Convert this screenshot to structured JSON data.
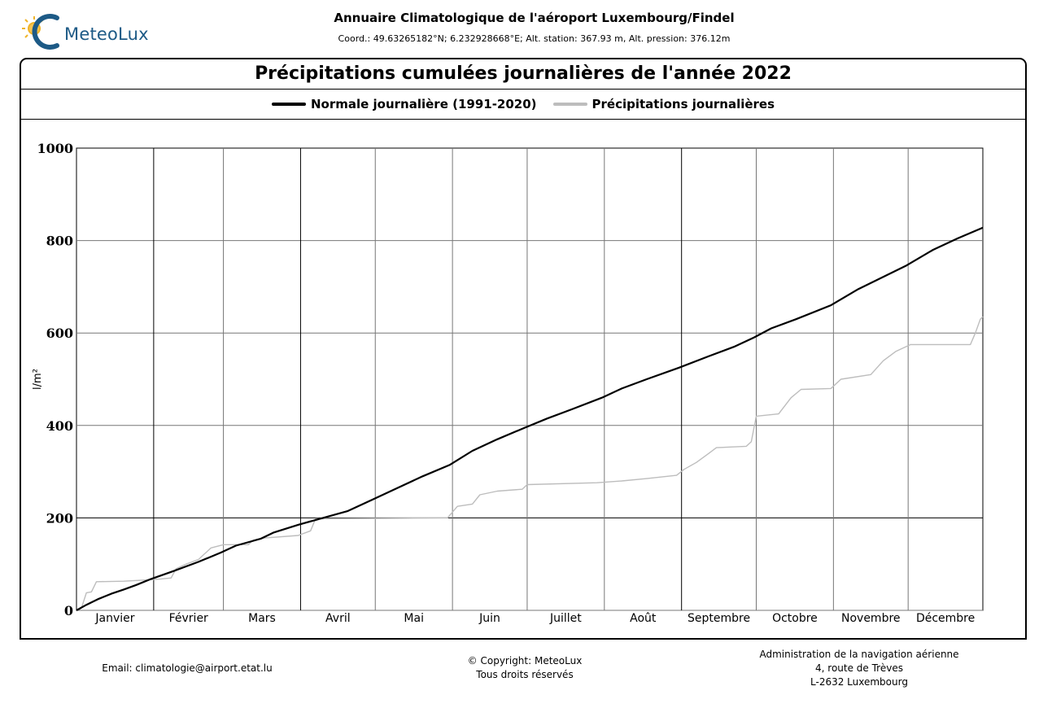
{
  "header": {
    "logo_text": "MeteoLux",
    "title": "Annuaire Climatologique de l'aéroport Luxembourg/Findel",
    "coords": "Coord.: 49.63265182°N; 6.232928668°E; Alt. station: 367.93 m, Alt. pression: 376.12m"
  },
  "colors": {
    "normal": "#000000",
    "daily": "#bdbdbd",
    "logo_blue": "#1d5a86",
    "logo_sun": "#f0b429"
  },
  "chart_data": {
    "type": "line",
    "title": "Précipitations cumulées journalières de l'année 2022",
    "ylabel": "l/m²",
    "ylim": [
      0,
      1000
    ],
    "yticks": [
      "0",
      "200",
      "400",
      "600",
      "800",
      "1000"
    ],
    "months": [
      "Janvier",
      "Février",
      "Mars",
      "Avril",
      "Mai",
      "Juin",
      "Juillet",
      "Août",
      "Septembre",
      "Octobre",
      "Novembre",
      "Décembre"
    ],
    "legend_position": "top",
    "grid": true,
    "series": [
      {
        "name": "Normale journalière (1991-2020)",
        "color": "#000000",
        "points": [
          [
            1,
            0
          ],
          [
            5,
            12
          ],
          [
            10,
            25
          ],
          [
            15,
            36
          ],
          [
            20,
            45
          ],
          [
            25,
            55
          ],
          [
            31,
            68
          ],
          [
            40,
            85
          ],
          [
            50,
            105
          ],
          [
            59,
            125
          ],
          [
            65,
            140
          ],
          [
            75,
            155
          ],
          [
            80,
            168
          ],
          [
            90,
            185
          ],
          [
            100,
            200
          ],
          [
            110,
            215
          ],
          [
            120,
            240
          ],
          [
            130,
            265
          ],
          [
            140,
            290
          ],
          [
            151,
            315
          ],
          [
            160,
            345
          ],
          [
            170,
            370
          ],
          [
            181,
            395
          ],
          [
            190,
            415
          ],
          [
            200,
            435
          ],
          [
            212,
            460
          ],
          [
            220,
            480
          ],
          [
            230,
            500
          ],
          [
            243,
            525
          ],
          [
            255,
            550
          ],
          [
            265,
            570
          ],
          [
            273,
            590
          ],
          [
            280,
            610
          ],
          [
            290,
            630
          ],
          [
            304,
            660
          ],
          [
            315,
            695
          ],
          [
            334,
            745
          ],
          [
            345,
            780
          ],
          [
            355,
            805
          ],
          [
            365,
            828
          ]
        ]
      },
      {
        "name": "Précipitations journalières",
        "color": "#bdbdbd",
        "points": [
          [
            1,
            0
          ],
          [
            3,
            5
          ],
          [
            5,
            38
          ],
          [
            7,
            40
          ],
          [
            9,
            62
          ],
          [
            20,
            63
          ],
          [
            30,
            66
          ],
          [
            35,
            68
          ],
          [
            39,
            70
          ],
          [
            41,
            90
          ],
          [
            45,
            100
          ],
          [
            50,
            110
          ],
          [
            52,
            120
          ],
          [
            55,
            135
          ],
          [
            60,
            142
          ],
          [
            70,
            142
          ],
          [
            72,
            152
          ],
          [
            75,
            156
          ],
          [
            90,
            162
          ],
          [
            95,
            172
          ],
          [
            97,
            198
          ],
          [
            150,
            200
          ],
          [
            154,
            225
          ],
          [
            160,
            230
          ],
          [
            163,
            250
          ],
          [
            170,
            258
          ],
          [
            180,
            262
          ],
          [
            182,
            272
          ],
          [
            210,
            276
          ],
          [
            220,
            280
          ],
          [
            230,
            285
          ],
          [
            242,
            292
          ],
          [
            245,
            305
          ],
          [
            250,
            320
          ],
          [
            255,
            340
          ],
          [
            258,
            352
          ],
          [
            270,
            355
          ],
          [
            272,
            365
          ],
          [
            274,
            420
          ],
          [
            283,
            425
          ],
          [
            288,
            460
          ],
          [
            292,
            478
          ],
          [
            304,
            480
          ],
          [
            308,
            500
          ],
          [
            320,
            510
          ],
          [
            325,
            540
          ],
          [
            330,
            560
          ],
          [
            336,
            575
          ],
          [
            360,
            575
          ],
          [
            362,
            600
          ],
          [
            364,
            630
          ],
          [
            365,
            635
          ]
        ]
      }
    ]
  },
  "footer": {
    "email": "Email: climatologie@airport.etat.lu",
    "copyright_1": "© Copyright: MeteoLux",
    "copyright_2": "Tous droits réservés",
    "address_1": "Administration de la navigation aérienne",
    "address_2": "4, route de Trèves",
    "address_3": "L-2632 Luxembourg"
  }
}
